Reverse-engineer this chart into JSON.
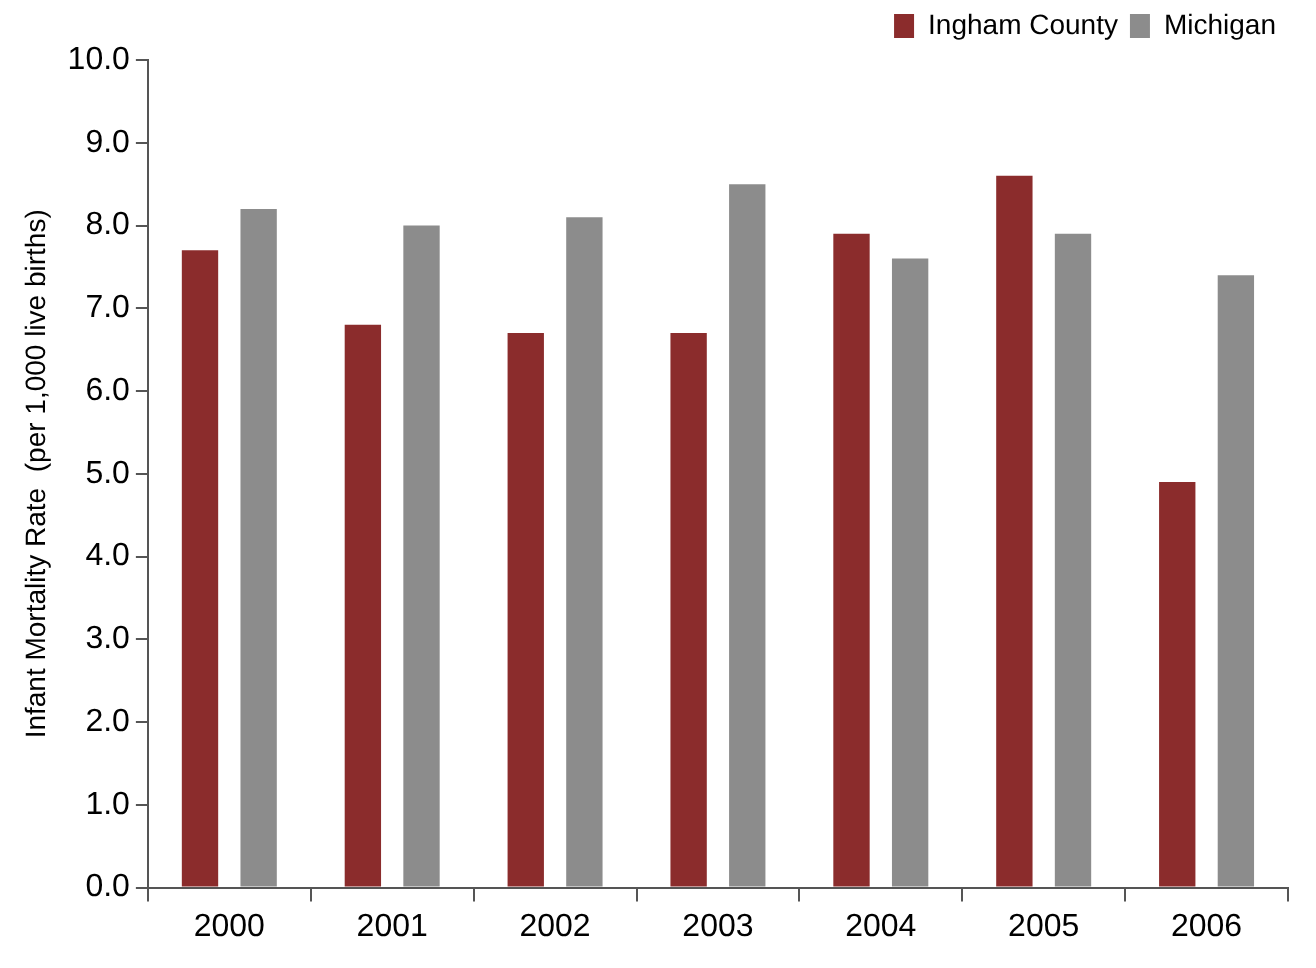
{
  "chart_data": {
    "type": "bar",
    "ylabel": "Infant Mortality Rate  (per 1,000 live births)",
    "categories": [
      "2000",
      "2001",
      "2002",
      "2003",
      "2004",
      "2005",
      "2006"
    ],
    "series": [
      {
        "name": "Ingham County",
        "color": "#8b2c2c",
        "values": [
          7.7,
          6.8,
          6.7,
          6.7,
          7.9,
          8.6,
          4.9
        ]
      },
      {
        "name": "Michigan",
        "color": "#8c8c8c",
        "values": [
          8.2,
          8.0,
          8.1,
          8.5,
          7.6,
          7.9,
          7.4
        ]
      }
    ],
    "ylim": [
      0,
      10
    ],
    "yticks": [
      {
        "value": 0,
        "label": "0.0"
      },
      {
        "value": 1,
        "label": "1.0"
      },
      {
        "value": 2,
        "label": "2.0"
      },
      {
        "value": 3,
        "label": "3.0"
      },
      {
        "value": 4,
        "label": "4.0"
      },
      {
        "value": 5,
        "label": "5.0"
      },
      {
        "value": 6,
        "label": "6.0"
      },
      {
        "value": 7,
        "label": "7.0"
      },
      {
        "value": 8,
        "label": "8.0"
      },
      {
        "value": 9,
        "label": "9.0"
      },
      {
        "value": 10,
        "label": "10.0"
      }
    ],
    "grid": false,
    "legend": "top right"
  }
}
